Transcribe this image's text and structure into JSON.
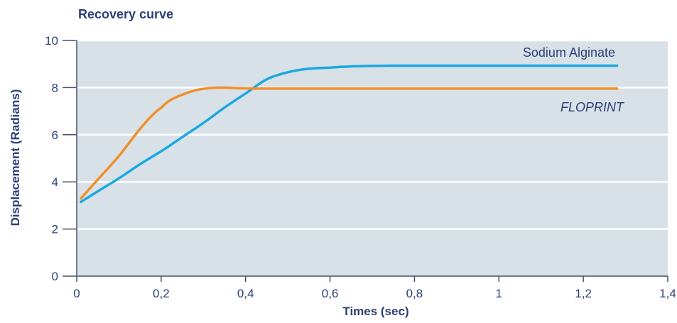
{
  "chart_data": {
    "type": "line",
    "title": "Recovery curve",
    "xlabel": "Times (sec)",
    "ylabel": "Displacement (Radians)",
    "xlim": [
      0,
      1.4
    ],
    "ylim": [
      0,
      10
    ],
    "x_ticks": [
      {
        "value": 0,
        "label": "0"
      },
      {
        "value": 0.2,
        "label": "0,2"
      },
      {
        "value": 0.4,
        "label": "0,4"
      },
      {
        "value": 0.6,
        "label": "0,6"
      },
      {
        "value": 0.8,
        "label": "0,8"
      },
      {
        "value": 1.0,
        "label": "1"
      },
      {
        "value": 1.2,
        "label": "1,2"
      },
      {
        "value": 1.4,
        "label": "1,4"
      }
    ],
    "y_ticks": [
      {
        "value": 0,
        "label": "0"
      },
      {
        "value": 2,
        "label": "2"
      },
      {
        "value": 4,
        "label": "4"
      },
      {
        "value": 6,
        "label": "6"
      },
      {
        "value": 8,
        "label": "8"
      },
      {
        "value": 10,
        "label": "10"
      }
    ],
    "grid": "horizontal",
    "background_color": "#d9e1e8",
    "series": [
      {
        "name": "Sodium Alginate",
        "italic": false,
        "color": "#1ba8e0",
        "x": [
          0.01,
          0.05,
          0.1,
          0.15,
          0.2,
          0.25,
          0.3,
          0.35,
          0.4,
          0.45,
          0.5,
          0.55,
          0.6,
          0.65,
          0.7,
          0.75,
          0.8,
          0.9,
          1.0,
          1.1,
          1.2,
          1.28
        ],
        "y": [
          3.15,
          3.6,
          4.15,
          4.75,
          5.3,
          5.9,
          6.5,
          7.15,
          7.75,
          8.35,
          8.65,
          8.8,
          8.85,
          8.9,
          8.92,
          8.93,
          8.93,
          8.93,
          8.93,
          8.93,
          8.93,
          8.93
        ]
      },
      {
        "name": "FLOPRINT",
        "italic": true,
        "color": "#f0902a",
        "x": [
          0.01,
          0.05,
          0.1,
          0.15,
          0.18,
          0.2,
          0.22,
          0.25,
          0.28,
          0.31,
          0.34,
          0.38,
          0.42,
          0.5,
          0.6,
          0.8,
          1.0,
          1.2,
          1.28
        ],
        "y": [
          3.3,
          4.1,
          5.1,
          6.25,
          6.85,
          7.15,
          7.45,
          7.7,
          7.88,
          7.97,
          8.0,
          7.98,
          7.96,
          7.96,
          7.96,
          7.96,
          7.96,
          7.96,
          7.96
        ]
      }
    ]
  }
}
